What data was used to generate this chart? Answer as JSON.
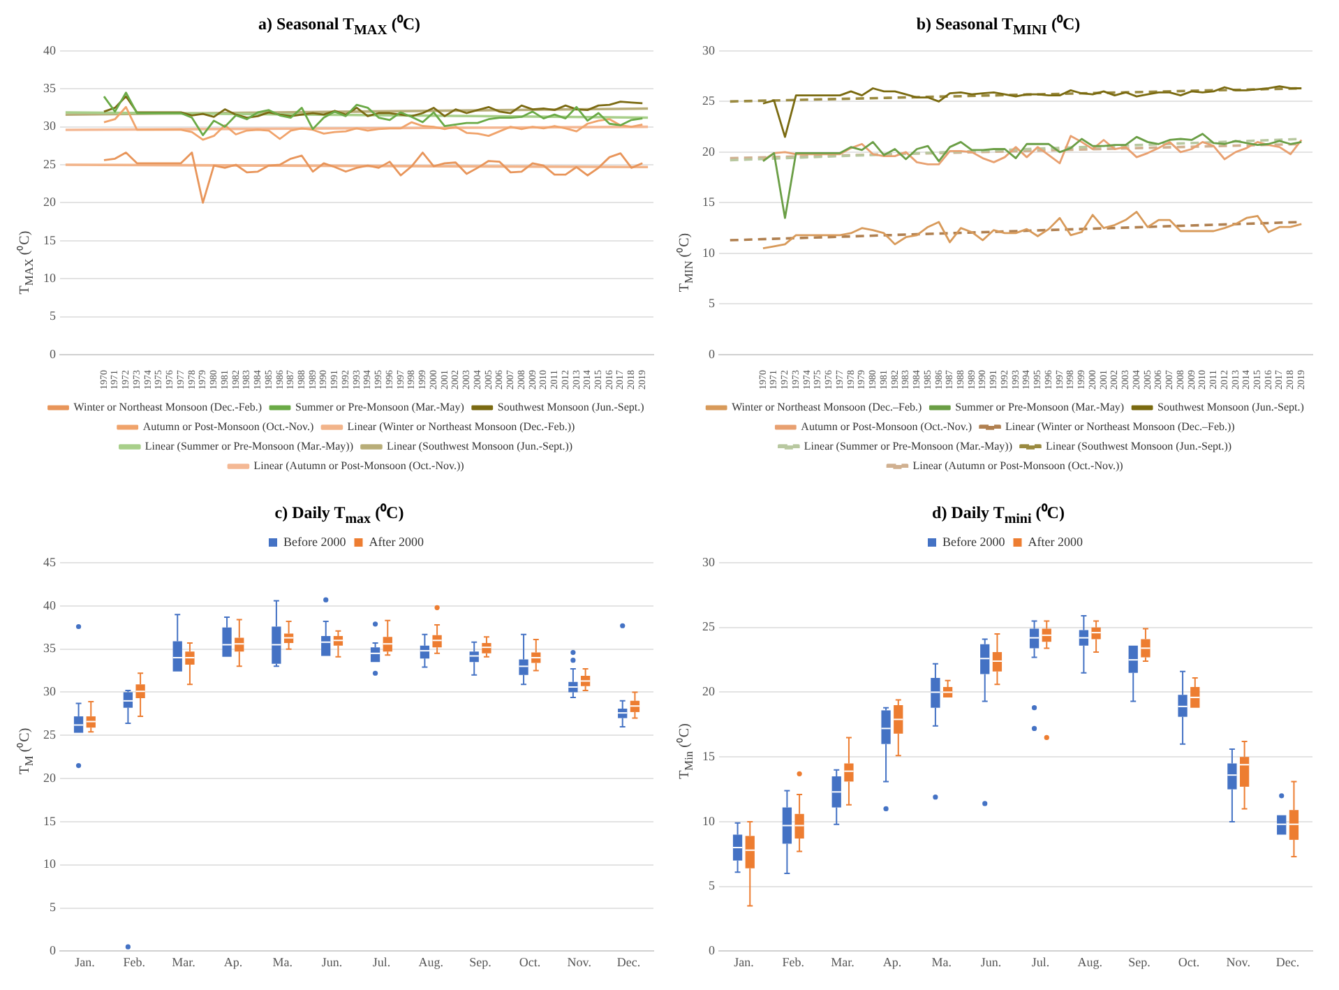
{
  "chart_data": [
    {
      "type": "line",
      "title": "a)      Seasonal T$_{MAX}$ (⁰C)",
      "ylabel": "T$_{MAX}$ (⁰C)",
      "x": [
        1970,
        1971,
        1972,
        1973,
        1974,
        1975,
        1976,
        1977,
        1978,
        1979,
        1980,
        1981,
        1982,
        1983,
        1984,
        1985,
        1986,
        1987,
        1988,
        1989,
        1990,
        1991,
        1992,
        1993,
        1994,
        1995,
        1996,
        1997,
        1998,
        1999,
        2000,
        2001,
        2002,
        2003,
        2004,
        2005,
        2006,
        2007,
        2008,
        2009,
        2010,
        2011,
        2012,
        2013,
        2014,
        2015,
        2016,
        2017,
        2018,
        2019
      ],
      "xlim": [
        1966,
        2020
      ],
      "xticks": [
        1970,
        1971,
        1972,
        1973,
        1974,
        1975,
        1976,
        1977,
        1978,
        1979,
        1980,
        1981,
        1982,
        1983,
        1984,
        1985,
        1986,
        1987,
        1988,
        1989,
        1990,
        1991,
        1992,
        1993,
        1994,
        1995,
        1996,
        1997,
        1998,
        1999,
        2000,
        2001,
        2002,
        2003,
        2004,
        2005,
        2006,
        2007,
        2008,
        2009,
        2010,
        2011,
        2012,
        2013,
        2014,
        2015,
        2016,
        2017,
        2018,
        2019
      ],
      "ylim": [
        0,
        40
      ],
      "yticks": [
        0,
        5,
        10,
        15,
        20,
        25,
        30,
        35,
        40
      ],
      "grid": "y",
      "legend": "bottom",
      "series": [
        {
          "name": "Winter or Northeast Monsoon (Dec.-Feb.)",
          "color": "#e8955a",
          "values": [
            25.6,
            25.8,
            26.6,
            25.2,
            25.2,
            25.2,
            25.2,
            25.2,
            26.6,
            20,
            24.9,
            24.6,
            25,
            24,
            24.1,
            24.9,
            25,
            25.8,
            26.2,
            24.1,
            25.2,
            24.7,
            24.1,
            24.6,
            24.9,
            24.6,
            25.4,
            23.6,
            24.8,
            26.6,
            24.8,
            25.2,
            25.3,
            23.8,
            24.6,
            25.5,
            25.4,
            24,
            24.1,
            25.2,
            24.9,
            23.7,
            23.7,
            24.7,
            23.6,
            24.6,
            26,
            26.5,
            24.6,
            25.2
          ]
        },
        {
          "name": "Summer or Pre-Monsoon (Mar.-May)",
          "color": "#6aaa46",
          "values": [
            34,
            32,
            34.5,
            31.8,
            31.8,
            31.8,
            31.8,
            31.8,
            31.2,
            28.9,
            30.8,
            30,
            31.5,
            31,
            31.9,
            32.2,
            31.5,
            31.2,
            32.5,
            29.7,
            31.2,
            32,
            31.4,
            32.9,
            32.5,
            31.2,
            30.9,
            31.9,
            31.3,
            30.6,
            31.9,
            30.1,
            30.3,
            30.5,
            30.5,
            31,
            31.2,
            31.2,
            31.3,
            32,
            31.1,
            31.6,
            31.1,
            32.6,
            30.8,
            31.8,
            30.4,
            30.2,
            30.9,
            31.1
          ]
        },
        {
          "name": "Southwest Monsoon (Jun.-Sept.)",
          "color": "#7b6a12",
          "values": [
            32,
            32.5,
            34,
            31.9,
            31.9,
            31.9,
            31.9,
            31.9,
            31.5,
            31.7,
            31.3,
            32.3,
            31.6,
            31.2,
            31.4,
            31.9,
            31.6,
            31.4,
            31.6,
            31.8,
            31.6,
            32.1,
            31.6,
            32.5,
            31.4,
            31.8,
            31.8,
            31.6,
            31.4,
            31.8,
            32.5,
            31.4,
            32.3,
            31.8,
            32.2,
            32.6,
            32,
            31.8,
            32.8,
            32.3,
            32.4,
            32.2,
            32.8,
            32.3,
            32.2,
            32.8,
            32.9,
            33.3,
            33.2,
            33.1
          ]
        },
        {
          "name": "Autumn or Post-Monsoon (Oct.-Nov.)",
          "color": "#f0a36b",
          "values": [
            30.6,
            31,
            32.6,
            29.6,
            29.6,
            29.6,
            29.6,
            29.6,
            29.3,
            28.3,
            28.8,
            30.2,
            29,
            29.5,
            29.6,
            29.5,
            28.4,
            29.5,
            29.8,
            29.6,
            29.1,
            29.3,
            29.4,
            29.8,
            29.5,
            29.7,
            29.8,
            29.8,
            30.6,
            30.1,
            30,
            29.7,
            30,
            29.2,
            29.1,
            28.8,
            29.4,
            30,
            29.7,
            30,
            29.8,
            30.1,
            29.8,
            29.4,
            30.4,
            30.8,
            31,
            30.2,
            30,
            30.3
          ]
        },
        {
          "name": "Linear (Winter or Northeast Monsoon (Dec.-Feb.))",
          "color": "#f2b48a",
          "x": [
            1966.5,
            2019.5
          ],
          "values": [
            25.0,
            24.7
          ]
        },
        {
          "name": "Linear (Summer or Pre-Monsoon (Mar.-May))",
          "color": "#a8cf8a",
          "x": [
            1966.5,
            2019.5
          ],
          "values": [
            31.9,
            31.2
          ]
        },
        {
          "name": "Linear (Southwest Monsoon (Jun.-Sept.))",
          "color": "#b8ad78",
          "x": [
            1966.5,
            2019.5
          ],
          "values": [
            31.6,
            32.4
          ]
        },
        {
          "name": "Linear (Autumn or Post-Monsoon (Oct.-Nov.))",
          "color": "#f4b894",
          "x": [
            1966.5,
            2019.5
          ],
          "values": [
            29.6,
            30.0
          ]
        }
      ]
    },
    {
      "type": "line",
      "title": "b)      Seasonal T$_{MINI}$ (⁰C)",
      "ylabel": "T$_{MIN}$ (⁰C)",
      "x": [
        1970,
        1971,
        1972,
        1973,
        1974,
        1975,
        1976,
        1977,
        1978,
        1979,
        1980,
        1981,
        1982,
        1983,
        1984,
        1985,
        1986,
        1987,
        1988,
        1989,
        1990,
        1991,
        1992,
        1993,
        1994,
        1995,
        1996,
        1997,
        1998,
        1999,
        2000,
        2001,
        2002,
        2003,
        2004,
        2005,
        2006,
        2007,
        2008,
        2009,
        2010,
        2011,
        2012,
        2013,
        2014,
        2015,
        2016,
        2017,
        2018,
        2019
      ],
      "xlim": [
        1966,
        2020
      ],
      "xticks": [
        1970,
        1971,
        1972,
        1973,
        1974,
        1975,
        1976,
        1977,
        1978,
        1979,
        1980,
        1981,
        1982,
        1983,
        1984,
        1985,
        1986,
        1987,
        1988,
        1989,
        1990,
        1991,
        1992,
        1993,
        1994,
        1995,
        1996,
        1997,
        1998,
        1999,
        2000,
        2001,
        2002,
        2003,
        2004,
        2005,
        2006,
        2007,
        2008,
        2009,
        2010,
        2011,
        2012,
        2013,
        2014,
        2015,
        2016,
        2017,
        2018,
        2019
      ],
      "ylim": [
        0,
        30
      ],
      "yticks": [
        0,
        5,
        10,
        15,
        20,
        25,
        30
      ],
      "grid": "y",
      "legend": "bottom",
      "series": [
        {
          "name": "Winter or Northeast Monsoon (Dec.–Feb.)",
          "color": "#d89a5a",
          "values": [
            10.5,
            10.7,
            10.9,
            11.8,
            11.8,
            11.8,
            11.8,
            11.8,
            12.0,
            12.5,
            12.3,
            12.0,
            10.9,
            11.6,
            11.8,
            12.6,
            13.1,
            11.1,
            12.5,
            12.1,
            11.3,
            12.3,
            12.0,
            12.0,
            12.4,
            11.7,
            12.4,
            13.5,
            11.8,
            12.1,
            13.8,
            12.5,
            12.8,
            13.3,
            14.1,
            12.6,
            13.3,
            13.3,
            12.2,
            12.2,
            12.2,
            12.2,
            12.5,
            12.9,
            13.5,
            13.7,
            12.1,
            12.6,
            12.6,
            12.9
          ]
        },
        {
          "name": "Summer or Pre-Monsoon (Mar.-May)",
          "color": "#6a9e45",
          "values": [
            19.1,
            19.9,
            13.5,
            19.9,
            19.9,
            19.9,
            19.9,
            19.9,
            20.5,
            20.2,
            21.0,
            19.7,
            20.3,
            19.3,
            20.3,
            20.6,
            19.1,
            20.5,
            21.0,
            20.2,
            20.2,
            20.3,
            20.3,
            19.4,
            20.8,
            20.8,
            20.8,
            20.0,
            20.4,
            21.3,
            20.6,
            20.6,
            20.7,
            20.7,
            21.5,
            21.0,
            20.8,
            21.2,
            21.3,
            21.2,
            21.8,
            20.9,
            20.8,
            21.1,
            20.9,
            20.7,
            20.8,
            21.1,
            20.8,
            21.0
          ]
        },
        {
          "name": "Southwest Monsoon (Jun.-Sept.)",
          "color": "#7a6a10",
          "values": [
            24.8,
            25.1,
            21.5,
            25.6,
            25.6,
            25.6,
            25.6,
            25.6,
            26.0,
            25.6,
            26.3,
            26.0,
            26.0,
            25.7,
            25.4,
            25.4,
            25.0,
            25.8,
            25.9,
            25.7,
            25.8,
            25.9,
            25.7,
            25.5,
            25.7,
            25.7,
            25.6,
            25.6,
            26.1,
            25.8,
            25.7,
            26.0,
            25.6,
            25.9,
            25.5,
            25.7,
            25.9,
            25.9,
            25.6,
            26.0,
            25.9,
            26.0,
            26.4,
            26.1,
            26.1,
            26.2,
            26.3,
            26.5,
            26.3,
            26.3
          ]
        },
        {
          "name": "Autumn or Post-Monsoon (Oct.-Nov.)",
          "color": "#e8a070",
          "values": [
            19.2,
            19.9,
            20.0,
            19.8,
            19.8,
            19.8,
            19.8,
            19.8,
            20.4,
            20.8,
            19.8,
            19.6,
            19.6,
            20.0,
            19.0,
            18.8,
            18.8,
            20.1,
            20.1,
            20.0,
            19.4,
            19.0,
            19.5,
            20.5,
            19.5,
            20.5,
            19.7,
            18.9,
            21.6,
            21.0,
            20.3,
            21.2,
            20.3,
            20.5,
            19.5,
            19.9,
            20.4,
            21.0,
            20.0,
            20.3,
            21.0,
            20.6,
            19.3,
            20.0,
            20.4,
            21.0,
            20.7,
            20.5,
            19.8,
            21.2
          ]
        },
        {
          "name": "Linear (Winter or Northeast Monsoon (Dec.–Feb.))",
          "color": "#b08050",
          "line_style": "dashed",
          "x": [
            1967,
            2019
          ],
          "values": [
            11.3,
            13.1
          ]
        },
        {
          "name": "Linear (Summer or Pre-Monsoon (Mar.-May))",
          "color": "#b8c8a0",
          "line_style": "dashed",
          "x": [
            1967,
            2019
          ],
          "values": [
            19.2,
            21.3
          ]
        },
        {
          "name": "Linear (Southwest Monsoon (Jun.-Sept.))",
          "color": "#9a8a40",
          "line_style": "dashed",
          "x": [
            1967,
            2019
          ],
          "values": [
            25.0,
            26.3
          ]
        },
        {
          "name": "Linear (Autumn or Post-Monsoon (Oct.-Nov.))",
          "color": "#d0b090",
          "line_style": "dashed",
          "x": [
            1967,
            2019
          ],
          "values": [
            19.4,
            20.8
          ]
        }
      ]
    },
    {
      "type": "box",
      "title": "c)      Daily T$_{max}$ (⁰C)",
      "ylabel": "T$_{M}$ (⁰C)",
      "categories": [
        "Jan.",
        "Feb.",
        "Mar.",
        "Ap.",
        "Ma.",
        "Jun.",
        "Jul.",
        "Aug.",
        "Sep.",
        "Oct.",
        "Nov.",
        "Dec."
      ],
      "ylim": [
        0,
        45
      ],
      "yticks": [
        0,
        5,
        10,
        15,
        20,
        25,
        30,
        35,
        40,
        45
      ],
      "grid": "y",
      "legend": "top",
      "series": [
        {
          "name": "Before 2000",
          "color": "#4472c4",
          "boxes": [
            {
              "low": 25.3,
              "q1": 25.3,
              "median": 26.2,
              "q3": 27.2,
              "high": 28.7,
              "outliers": [
                37.6,
                21.5
              ]
            },
            {
              "low": 26.4,
              "q1": 28.2,
              "median": 29.0,
              "q3": 30.0,
              "high": 30.2,
              "outliers": [
                0.5
              ]
            },
            {
              "low": 32.4,
              "q1": 32.4,
              "median": 34.0,
              "q3": 35.9,
              "high": 39.0
            },
            {
              "low": 34.1,
              "q1": 34.1,
              "median": 35.5,
              "q3": 37.5,
              "high": 38.7
            },
            {
              "low": 33.0,
              "q1": 33.3,
              "median": 35.5,
              "q3": 37.6,
              "high": 40.6
            },
            {
              "low": 34.2,
              "q1": 34.2,
              "median": 35.8,
              "q3": 36.5,
              "high": 38.2,
              "outliers": [
                40.7
              ]
            },
            {
              "low": 33.5,
              "q1": 33.5,
              "median": 34.5,
              "q3": 35.2,
              "high": 35.7,
              "outliers": [
                37.9,
                32.2
              ]
            },
            {
              "low": 32.9,
              "q1": 33.9,
              "median": 34.8,
              "q3": 35.4,
              "high": 36.7
            },
            {
              "low": 32.0,
              "q1": 33.5,
              "median": 34.2,
              "q3": 34.7,
              "high": 35.8
            },
            {
              "low": 30.9,
              "q1": 32.0,
              "median": 33.0,
              "q3": 33.8,
              "high": 36.7
            },
            {
              "low": 29.4,
              "q1": 30.0,
              "median": 30.6,
              "q3": 31.2,
              "high": 32.7,
              "outliers": [
                34.6,
                33.7
              ]
            },
            {
              "low": 26.0,
              "q1": 27.0,
              "median": 27.6,
              "q3": 28.1,
              "high": 29.0,
              "outliers": [
                37.7
              ]
            }
          ]
        },
        {
          "name": "After 2000",
          "color": "#ed7d31",
          "boxes": [
            {
              "low": 25.4,
              "q1": 25.9,
              "median": 26.6,
              "q3": 27.2,
              "high": 28.9
            },
            {
              "low": 27.2,
              "q1": 29.3,
              "median": 30.1,
              "q3": 30.9,
              "high": 32.2
            },
            {
              "low": 30.9,
              "q1": 33.2,
              "median": 34.0,
              "q3": 34.7,
              "high": 35.7
            },
            {
              "low": 33.0,
              "q1": 34.7,
              "median": 35.6,
              "q3": 36.3,
              "high": 38.4
            },
            {
              "low": 35.0,
              "q1": 35.7,
              "median": 36.3,
              "q3": 36.8,
              "high": 38.2
            },
            {
              "low": 34.1,
              "q1": 35.4,
              "median": 36.0,
              "q3": 36.5,
              "high": 37.1
            },
            {
              "low": 34.3,
              "q1": 34.7,
              "median": 35.6,
              "q3": 36.4,
              "high": 38.3
            },
            {
              "low": 34.5,
              "q1": 35.2,
              "median": 36.0,
              "q3": 36.6,
              "high": 37.8,
              "outliers": [
                39.8
              ]
            },
            {
              "low": 34.1,
              "q1": 34.5,
              "median": 35.2,
              "q3": 35.7,
              "high": 36.4
            },
            {
              "low": 32.5,
              "q1": 33.4,
              "median": 34.0,
              "q3": 34.6,
              "high": 36.1
            },
            {
              "low": 30.2,
              "q1": 30.7,
              "median": 31.3,
              "q3": 31.9,
              "high": 32.7
            },
            {
              "low": 27.0,
              "q1": 27.7,
              "median": 28.4,
              "q3": 29.0,
              "high": 30.0
            }
          ]
        }
      ]
    },
    {
      "type": "box",
      "title": "d)      Daily T$_{mini}$ (⁰C)",
      "ylabel": "T$_{Min}$ (⁰C)",
      "categories": [
        "Jan.",
        "Feb.",
        "Mar.",
        "Ap.",
        "Ma.",
        "Jun.",
        "Jul.",
        "Aug.",
        "Sep.",
        "Oct.",
        "Nov.",
        "Dec."
      ],
      "ylim": [
        0,
        30
      ],
      "yticks": [
        0,
        5,
        10,
        15,
        20,
        25,
        30
      ],
      "grid": "y",
      "legend": "top",
      "series": [
        {
          "name": "Before 2000",
          "color": "#4472c4",
          "boxes": [
            {
              "low": 6.1,
              "q1": 7.0,
              "median": 8.0,
              "q3": 9.0,
              "high": 9.9
            },
            {
              "low": 6.0,
              "q1": 8.3,
              "median": 9.7,
              "q3": 11.1,
              "high": 12.4
            },
            {
              "low": 9.8,
              "q1": 11.1,
              "median": 12.3,
              "q3": 13.5,
              "high": 14.0
            },
            {
              "low": 13.1,
              "q1": 16.0,
              "median": 17.2,
              "q3": 18.6,
              "high": 18.8,
              "outliers": [
                11.0
              ]
            },
            {
              "low": 17.4,
              "q1": 18.8,
              "median": 20.0,
              "q3": 21.1,
              "high": 22.2,
              "outliers": [
                11.9
              ]
            },
            {
              "low": 19.3,
              "q1": 21.4,
              "median": 22.6,
              "q3": 23.7,
              "high": 24.1,
              "outliers": [
                11.4
              ]
            },
            {
              "low": 22.7,
              "q1": 23.4,
              "median": 24.2,
              "q3": 24.9,
              "high": 25.5,
              "outliers": [
                18.8,
                17.2
              ]
            },
            {
              "low": 21.5,
              "q1": 23.6,
              "median": 24.2,
              "q3": 24.8,
              "high": 25.9
            },
            {
              "low": 19.3,
              "q1": 21.5,
              "median": 22.5,
              "q3": 23.6,
              "high": 23.6
            },
            {
              "low": 16.0,
              "q1": 18.1,
              "median": 18.9,
              "q3": 19.8,
              "high": 21.6
            },
            {
              "low": 10.0,
              "q1": 12.5,
              "median": 13.6,
              "q3": 14.5,
              "high": 15.6
            },
            {
              "low": 9.0,
              "q1": 9.0,
              "median": 9.8,
              "q3": 10.5,
              "high": 10.5,
              "outliers": [
                12.0
              ]
            }
          ]
        },
        {
          "name": "After 2000",
          "color": "#ed7d31",
          "boxes": [
            {
              "low": 3.5,
              "q1": 6.4,
              "median": 7.8,
              "q3": 8.9,
              "high": 10.0
            },
            {
              "low": 7.7,
              "q1": 8.7,
              "median": 9.7,
              "q3": 10.6,
              "high": 12.1,
              "outliers": [
                13.7
              ]
            },
            {
              "low": 11.3,
              "q1": 13.1,
              "median": 13.9,
              "q3": 14.5,
              "high": 16.5
            },
            {
              "low": 15.1,
              "q1": 16.8,
              "median": 17.9,
              "q3": 19.0,
              "high": 19.4
            },
            {
              "low": 19.6,
              "q1": 19.6,
              "median": 20.0,
              "q3": 20.4,
              "high": 20.9
            },
            {
              "low": 20.6,
              "q1": 21.6,
              "median": 22.4,
              "q3": 23.1,
              "high": 24.5
            },
            {
              "low": 23.4,
              "q1": 23.9,
              "median": 24.4,
              "q3": 24.9,
              "high": 25.5,
              "outliers": [
                16.5
              ]
            },
            {
              "low": 23.1,
              "q1": 24.1,
              "median": 24.6,
              "q3": 25.0,
              "high": 25.5
            },
            {
              "low": 22.4,
              "q1": 22.7,
              "median": 23.4,
              "q3": 24.1,
              "high": 24.9
            },
            {
              "low": 18.8,
              "q1": 18.8,
              "median": 19.6,
              "q3": 20.4,
              "high": 21.1
            },
            {
              "low": 11.0,
              "q1": 12.7,
              "median": 14.4,
              "q3": 15.0,
              "high": 16.2
            },
            {
              "low": 7.3,
              "q1": 8.6,
              "median": 9.8,
              "q3": 10.9,
              "high": 13.1
            }
          ]
        }
      ]
    }
  ]
}
